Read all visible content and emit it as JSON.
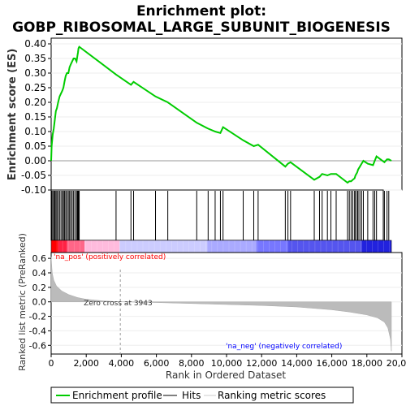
{
  "chart_data": {
    "type": "line",
    "title_line1": "Enrichment plot:",
    "title_line2": "GOBP_RIBOSOMAL_LARGE_SUBUNIT_BIOGENESIS",
    "xlabel": "Rank in Ordered Dataset",
    "ylabel_top": "Enrichment score (ES)",
    "ylabel_bottom": "Ranked list metric (PreRanked)",
    "x_range": [
      0,
      20000
    ],
    "n_genes": 19400,
    "es_ylim": [
      -0.1,
      0.4
    ],
    "es_ticks": [
      "0.40",
      "0.35",
      "0.30",
      "0.25",
      "0.20",
      "0.15",
      "0.10",
      "0.05",
      "0.00",
      "-0.05",
      "-0.10"
    ],
    "es_tick_values": [
      0.4,
      0.35,
      0.3,
      0.25,
      0.2,
      0.15,
      0.1,
      0.05,
      0.0,
      -0.05,
      -0.1
    ],
    "metric_ylim": [
      -0.72,
      0.68
    ],
    "metric_ticks": [
      "0.6",
      "0.4",
      "0.2",
      "0.0",
      "-0.2",
      "-0.4",
      "-0.6"
    ],
    "metric_tick_values": [
      0.6,
      0.4,
      0.2,
      0.0,
      -0.2,
      -0.4,
      -0.6
    ],
    "x_ticks": [
      "0",
      "2,000",
      "4,000",
      "6,000",
      "8,000",
      "10,000",
      "12,000",
      "14,000",
      "16,000",
      "18,000",
      "20,000"
    ],
    "x_tick_values": [
      0,
      2000,
      4000,
      6000,
      8000,
      10000,
      12000,
      14000,
      16000,
      18000,
      20000
    ],
    "zero_cross": 3943,
    "zero_cross_label": "Zero cross at 3943",
    "na_pos_label": "'na_pos' (positively correlated)",
    "na_neg_label": "'na_neg' (negatively correlated)",
    "legend": [
      "Enrichment profile",
      "Hits",
      "Ranking metric scores"
    ],
    "colors": {
      "es_line": "#00cc00",
      "hits": "#000000",
      "metric_fill": "#bbbbbb",
      "zero_line": "#999999",
      "na_pos": "#ff0000",
      "na_neg": "#0000ff"
    },
    "hits": [
      30,
      90,
      150,
      210,
      270,
      330,
      400,
      480,
      560,
      640,
      700,
      760,
      830,
      900,
      980,
      1050,
      1120,
      1200,
      1280,
      1360,
      1450,
      1500,
      1530,
      1560,
      1600,
      3700,
      4550,
      4700,
      5950,
      6650,
      8300,
      8950,
      9350,
      9650,
      9800,
      10950,
      11550,
      11800,
      13350,
      13500,
      13650,
      15000,
      15300,
      15450,
      15750,
      15950,
      16250,
      16900,
      17000,
      17100,
      17200,
      17300,
      17350,
      17450,
      17500,
      17600,
      17700,
      17800,
      18050,
      18350,
      18450,
      18550,
      19000,
      19150,
      19250
    ],
    "es_points": [
      [
        0,
        0.0
      ],
      [
        30,
        0.05
      ],
      [
        90,
        0.09
      ],
      [
        150,
        0.11
      ],
      [
        210,
        0.14
      ],
      [
        270,
        0.17
      ],
      [
        330,
        0.18
      ],
      [
        400,
        0.2
      ],
      [
        480,
        0.22
      ],
      [
        560,
        0.23
      ],
      [
        640,
        0.24
      ],
      [
        700,
        0.25
      ],
      [
        760,
        0.27
      ],
      [
        830,
        0.29
      ],
      [
        900,
        0.3
      ],
      [
        980,
        0.3
      ],
      [
        1050,
        0.32
      ],
      [
        1120,
        0.33
      ],
      [
        1200,
        0.34
      ],
      [
        1280,
        0.35
      ],
      [
        1360,
        0.35
      ],
      [
        1450,
        0.34
      ],
      [
        1500,
        0.36
      ],
      [
        1530,
        0.37
      ],
      [
        1560,
        0.385
      ],
      [
        1600,
        0.39
      ],
      [
        3700,
        0.295
      ],
      [
        4550,
        0.26
      ],
      [
        4700,
        0.27
      ],
      [
        5950,
        0.22
      ],
      [
        6650,
        0.2
      ],
      [
        8300,
        0.13
      ],
      [
        8950,
        0.11
      ],
      [
        9350,
        0.1
      ],
      [
        9650,
        0.095
      ],
      [
        9800,
        0.115
      ],
      [
        10950,
        0.07
      ],
      [
        11550,
        0.05
      ],
      [
        11800,
        0.055
      ],
      [
        13350,
        -0.02
      ],
      [
        13500,
        -0.01
      ],
      [
        13650,
        -0.005
      ],
      [
        15000,
        -0.065
      ],
      [
        15300,
        -0.055
      ],
      [
        15450,
        -0.045
      ],
      [
        15750,
        -0.05
      ],
      [
        15950,
        -0.045
      ],
      [
        16250,
        -0.045
      ],
      [
        16900,
        -0.075
      ],
      [
        17000,
        -0.07
      ],
      [
        17100,
        -0.07
      ],
      [
        17200,
        -0.065
      ],
      [
        17300,
        -0.06
      ],
      [
        17350,
        -0.05
      ],
      [
        17450,
        -0.04
      ],
      [
        17500,
        -0.03
      ],
      [
        17600,
        -0.02
      ],
      [
        17700,
        -0.01
      ],
      [
        17800,
        0.0
      ],
      [
        18050,
        -0.01
      ],
      [
        18350,
        -0.015
      ],
      [
        18450,
        0.0
      ],
      [
        18550,
        0.015
      ],
      [
        19000,
        -0.005
      ],
      [
        19150,
        0.005
      ],
      [
        19250,
        0.005
      ],
      [
        19400,
        0.0
      ]
    ],
    "metric_profile": [
      [
        0,
        0.62
      ],
      [
        60,
        0.4
      ],
      [
        150,
        0.3
      ],
      [
        300,
        0.22
      ],
      [
        600,
        0.15
      ],
      [
        1000,
        0.1
      ],
      [
        1500,
        0.06
      ],
      [
        2000,
        0.035
      ],
      [
        3000,
        0.012
      ],
      [
        3943,
        0.0
      ],
      [
        6000,
        -0.01
      ],
      [
        9000,
        -0.03
      ],
      [
        12000,
        -0.05
      ],
      [
        14000,
        -0.07
      ],
      [
        16000,
        -0.11
      ],
      [
        17000,
        -0.14
      ],
      [
        18000,
        -0.18
      ],
      [
        18600,
        -0.22
      ],
      [
        19000,
        -0.28
      ],
      [
        19200,
        -0.36
      ],
      [
        19350,
        -0.52
      ],
      [
        19400,
        -0.68
      ]
    ]
  }
}
